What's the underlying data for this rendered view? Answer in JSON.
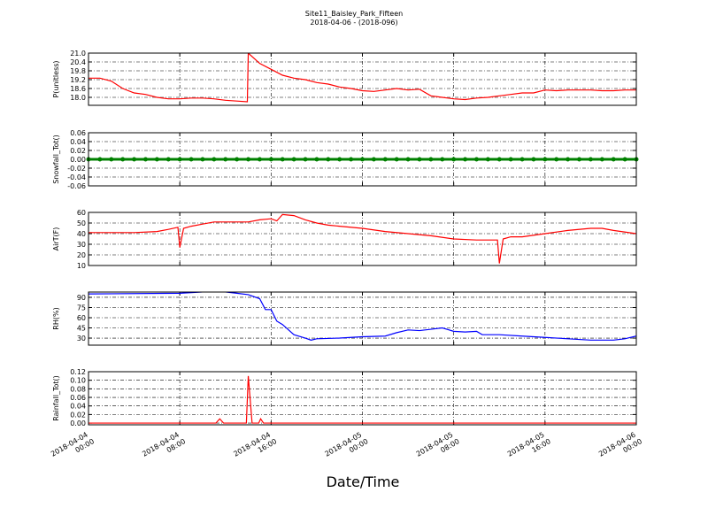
{
  "chart_data": [
    {
      "type": "line",
      "title": "Site11_Baisley_Park_Fifteen",
      "subtitle": "2018-04-06 - (2018-096)",
      "ylabel": "P(unitless)",
      "color": "#ff0000",
      "grid": true,
      "ylim": [
        17.46,
        21.0
      ],
      "yticks": [
        {
          "value": 18.0,
          "label": "18.0"
        },
        18.6,
        19.2,
        19.8,
        20.4,
        {
          "value": 21.0,
          "label": "21.0"
        }
      ],
      "x": [
        "2018-04-04 00:00",
        "2018-04-04 01:00",
        "2018-04-04 02:00",
        "2018-04-04 03:00",
        "2018-04-04 04:00",
        "2018-04-04 05:00",
        "2018-04-04 06:00",
        "2018-04-04 07:00",
        "2018-04-04 08:00",
        "2018-04-04 09:00",
        "2018-04-04 10:00",
        "2018-04-04 11:00",
        "2018-04-04 12:00",
        "2018-04-04 13:00",
        "2018-04-04 13:55",
        "2018-04-04 14:00",
        "2018-04-04 15:00",
        "2018-04-04 16:00",
        "2018-04-04 17:00",
        "2018-04-04 18:00",
        "2018-04-04 19:00",
        "2018-04-04 20:00",
        "2018-04-04 21:00",
        "2018-04-04 22:00",
        "2018-04-04 23:00",
        "2018-04-05 00:00",
        "2018-04-05 01:00",
        "2018-04-05 02:00",
        "2018-04-05 03:00",
        "2018-04-05 04:00",
        "2018-04-05 05:00",
        "2018-04-05 06:00",
        "2018-04-05 07:00",
        "2018-04-05 08:00",
        "2018-04-05 09:00",
        "2018-04-05 10:00",
        "2018-04-05 11:00",
        "2018-04-05 12:00",
        "2018-04-05 13:00",
        "2018-04-05 14:00",
        "2018-04-05 15:00",
        "2018-04-05 16:00",
        "2018-04-05 17:00",
        "2018-04-05 18:00",
        "2018-04-05 19:00",
        "2018-04-05 20:00",
        "2018-04-05 21:00",
        "2018-04-05 22:00",
        "2018-04-05 23:00",
        "2018-04-06 00:00"
      ],
      "values": [
        19.3,
        19.3,
        19.1,
        18.6,
        18.3,
        18.2,
        18.0,
        17.9,
        17.9,
        17.95,
        17.95,
        17.9,
        17.8,
        17.75,
        17.7,
        21.0,
        20.3,
        19.9,
        19.5,
        19.3,
        19.2,
        19.0,
        18.9,
        18.7,
        18.6,
        18.45,
        18.4,
        18.5,
        18.6,
        18.5,
        18.55,
        18.1,
        18.0,
        17.9,
        17.85,
        17.95,
        18.0,
        18.1,
        18.2,
        18.3,
        18.3,
        18.5,
        18.45,
        18.5,
        18.5,
        18.5,
        18.45,
        18.45,
        18.5,
        18.5
      ]
    },
    {
      "type": "line",
      "ylabel": "Snowfall_Tot()",
      "color": "#008000",
      "grid": true,
      "markers": true,
      "ylim": [
        -0.06,
        0.06
      ],
      "yticks": [
        -0.06,
        -0.04,
        -0.02,
        {
          "value": 0,
          "label": "0.00"
        },
        0.02,
        0.04,
        0.06
      ],
      "x": [
        "2018-04-04 00:00",
        "2018-04-04 01:00",
        "2018-04-04 02:00",
        "2018-04-04 03:00",
        "2018-04-04 04:00",
        "2018-04-04 05:00",
        "2018-04-04 06:00",
        "2018-04-04 07:00",
        "2018-04-04 08:00",
        "2018-04-04 09:00",
        "2018-04-04 10:00",
        "2018-04-04 11:00",
        "2018-04-04 12:00",
        "2018-04-04 13:00",
        "2018-04-04 14:00",
        "2018-04-04 15:00",
        "2018-04-04 16:00",
        "2018-04-04 17:00",
        "2018-04-04 18:00",
        "2018-04-04 19:00",
        "2018-04-04 20:00",
        "2018-04-04 21:00",
        "2018-04-04 22:00",
        "2018-04-04 23:00",
        "2018-04-05 00:00",
        "2018-04-05 01:00",
        "2018-04-05 02:00",
        "2018-04-05 03:00",
        "2018-04-05 04:00",
        "2018-04-05 05:00",
        "2018-04-05 06:00",
        "2018-04-05 07:00",
        "2018-04-05 08:00",
        "2018-04-05 09:00",
        "2018-04-05 10:00",
        "2018-04-05 11:00",
        "2018-04-05 12:00",
        "2018-04-05 13:00",
        "2018-04-05 14:00",
        "2018-04-05 15:00",
        "2018-04-05 16:00",
        "2018-04-05 17:00",
        "2018-04-05 18:00",
        "2018-04-05 19:00",
        "2018-04-05 20:00",
        "2018-04-05 21:00",
        "2018-04-05 22:00",
        "2018-04-05 23:00",
        "2018-04-06 00:00"
      ],
      "values": [
        0,
        0,
        0,
        0,
        0,
        0,
        0,
        0,
        0,
        0,
        0,
        0,
        0,
        0,
        0,
        0,
        0,
        0,
        0,
        0,
        0,
        0,
        0,
        0,
        0,
        0,
        0,
        0,
        0,
        0,
        0,
        0,
        0,
        0,
        0,
        0,
        0,
        0,
        0,
        0,
        0,
        0,
        0,
        0,
        0,
        0,
        0,
        0,
        0
      ]
    },
    {
      "type": "line",
      "ylabel": "AirT(F)",
      "color": "#ff0000",
      "grid": true,
      "ylim": [
        10,
        60
      ],
      "yticks": [
        10,
        20,
        30,
        40,
        50,
        60
      ],
      "x": [
        "2018-04-04 00:00",
        "2018-04-04 04:00",
        "2018-04-04 06:00",
        "2018-04-04 07:00",
        "2018-04-04 07:50",
        "2018-04-04 08:00",
        "2018-04-04 08:20",
        "2018-04-04 09:00",
        "2018-04-04 10:00",
        "2018-04-04 11:00",
        "2018-04-04 12:00",
        "2018-04-04 13:00",
        "2018-04-04 14:00",
        "2018-04-04 15:00",
        "2018-04-04 16:00",
        "2018-04-04 16:30",
        "2018-04-04 17:00",
        "2018-04-04 18:00",
        "2018-04-04 19:00",
        "2018-04-04 20:00",
        "2018-04-04 21:00",
        "2018-04-04 22:00",
        "2018-04-05 00:00",
        "2018-04-05 02:00",
        "2018-04-05 04:00",
        "2018-04-05 06:00",
        "2018-04-05 08:00",
        "2018-04-05 10:00",
        "2018-04-05 11:50",
        "2018-04-05 12:00",
        "2018-04-05 12:20",
        "2018-04-05 13:00",
        "2018-04-05 14:00",
        "2018-04-05 16:00",
        "2018-04-05 18:00",
        "2018-04-05 20:00",
        "2018-04-05 21:00",
        "2018-04-05 22:00",
        "2018-04-06 00:00"
      ],
      "values": [
        41,
        41,
        42,
        44,
        46,
        27,
        45,
        47,
        49,
        51,
        51,
        51,
        51,
        53,
        54,
        52,
        58,
        57,
        53,
        50,
        48,
        47,
        45,
        42,
        40,
        38,
        35,
        34,
        34,
        12,
        35,
        37,
        37,
        40,
        43,
        45,
        45,
        43,
        40
      ]
    },
    {
      "type": "line",
      "ylabel": "RH(%)",
      "color": "#0000ff",
      "grid": true,
      "ylim": [
        19.6,
        97.8
      ],
      "yticks": [
        30,
        45,
        60,
        75,
        90
      ],
      "x": [
        "2018-04-04 00:00",
        "2018-04-04 08:00",
        "2018-04-04 09:00",
        "2018-04-04 10:00",
        "2018-04-04 12:00",
        "2018-04-04 13:00",
        "2018-04-04 14:00",
        "2018-04-04 15:00",
        "2018-04-04 15:30",
        "2018-04-04 16:00",
        "2018-04-04 16:30",
        "2018-04-04 17:00",
        "2018-04-04 18:00",
        "2018-04-04 19:00",
        "2018-04-04 19:30",
        "2018-04-04 20:00",
        "2018-04-04 22:00",
        "2018-04-05 00:00",
        "2018-04-05 02:00",
        "2018-04-05 03:00",
        "2018-04-05 04:00",
        "2018-04-05 05:00",
        "2018-04-05 06:00",
        "2018-04-05 07:00",
        "2018-04-05 08:00",
        "2018-04-05 09:00",
        "2018-04-05 10:00",
        "2018-04-05 10:30",
        "2018-04-05 12:00",
        "2018-04-05 14:00",
        "2018-04-05 16:00",
        "2018-04-05 18:00",
        "2018-04-05 20:00",
        "2018-04-05 22:00",
        "2018-04-05 23:00",
        "2018-04-06 00:00"
      ],
      "values": [
        95,
        96,
        97,
        98,
        98,
        96,
        94,
        88,
        72,
        72,
        55,
        50,
        35,
        30,
        27,
        29,
        30,
        32,
        33,
        38,
        42,
        41,
        43,
        45,
        40,
        39,
        40,
        35,
        35,
        33,
        31,
        29,
        27,
        27,
        29,
        33
      ]
    },
    {
      "type": "line",
      "ylabel": "Rainfall_Tot()",
      "color": "#ff0000",
      "grid": true,
      "xlabel": "Date/Time",
      "ylim": [
        -0.004,
        0.12
      ],
      "yticks": [
        {
          "value": 0,
          "label": "0.00"
        },
        0.02,
        0.04,
        0.06,
        0.08,
        {
          "value": 0.1,
          "label": "0.10"
        },
        0.12
      ],
      "xlim": [
        "2018-04-04 00:00",
        "2018-04-06 00:00"
      ],
      "xticks": [
        "2018-04-04 00:00",
        "2018-04-04 08:00",
        "2018-04-04 16:00",
        "2018-04-05 00:00",
        "2018-04-05 08:00",
        "2018-04-05 16:00",
        "2018-04-06 00:00"
      ],
      "x": [
        "2018-04-04 00:00",
        "2018-04-04 11:10",
        "2018-04-04 11:30",
        "2018-04-04 11:50",
        "2018-04-04 13:50",
        "2018-04-04 14:00",
        "2018-04-04 14:20",
        "2018-04-04 14:55",
        "2018-04-04 15:05",
        "2018-04-04 15:20",
        "2018-04-06 00:00"
      ],
      "values": [
        0,
        0,
        0.01,
        0,
        0,
        0.11,
        0,
        0,
        0.01,
        0,
        0
      ]
    }
  ]
}
